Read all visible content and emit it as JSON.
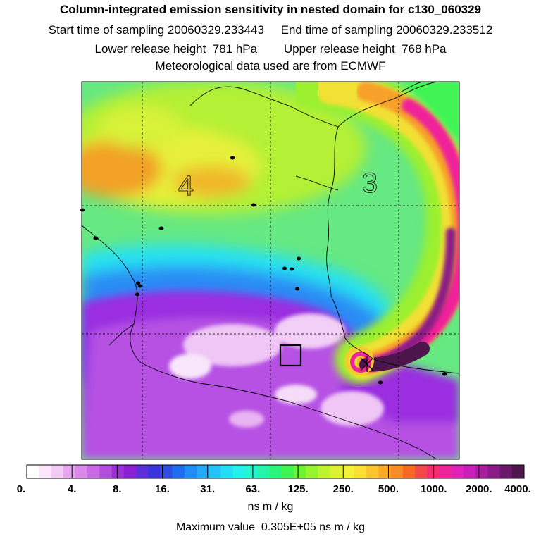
{
  "header": {
    "title": "Column-integrated emission sensitivity in nested domain for c130_060329",
    "sampling_line": "Start time of sampling 20060329.233443     End time of sampling 20060329.233512",
    "release_line": "Lower release height  781 hPa        Upper release height  768 hPa",
    "met_line": "Meteorological data used are from ECMWF"
  },
  "map": {
    "region_labels": [
      "4",
      "3"
    ],
    "colors": {
      "land_line": "#000000",
      "grid_line": "#000000"
    }
  },
  "colorbar": {
    "labels": [
      "0.",
      "4.",
      "8.",
      "16.",
      "31.",
      "63.",
      "125.",
      "250.",
      "500.",
      "1000.",
      "2000.",
      "4000."
    ],
    "colors": [
      "#ffffff",
      "#fbe6fb",
      "#f3ccf5",
      "#e7a6ef",
      "#d98ae9",
      "#c76ae3",
      "#b34edd",
      "#9e30d8",
      "#8a1fd3",
      "#5c2fd9",
      "#3b33dd",
      "#2f4de2",
      "#1f6cef",
      "#1f8cf7",
      "#22a9fb",
      "#22c3f7",
      "#22dff5",
      "#22f2ea",
      "#22f5cf",
      "#24f5a8",
      "#2af57a",
      "#3ff552",
      "#6ef532",
      "#96f52c",
      "#bef42e",
      "#dcf232",
      "#f2f236",
      "#f9e032",
      "#fbc62c",
      "#fbaa28",
      "#f98c26",
      "#f76a24",
      "#f54848",
      "#f52c6e",
      "#f0249a",
      "#e022b6",
      "#c71fb8",
      "#a81c9e",
      "#8a1a86",
      "#6a1868",
      "#4c164c"
    ],
    "units": "ns m / kg",
    "max_value": "Maximum value  0.305E+05 ns m / kg"
  }
}
